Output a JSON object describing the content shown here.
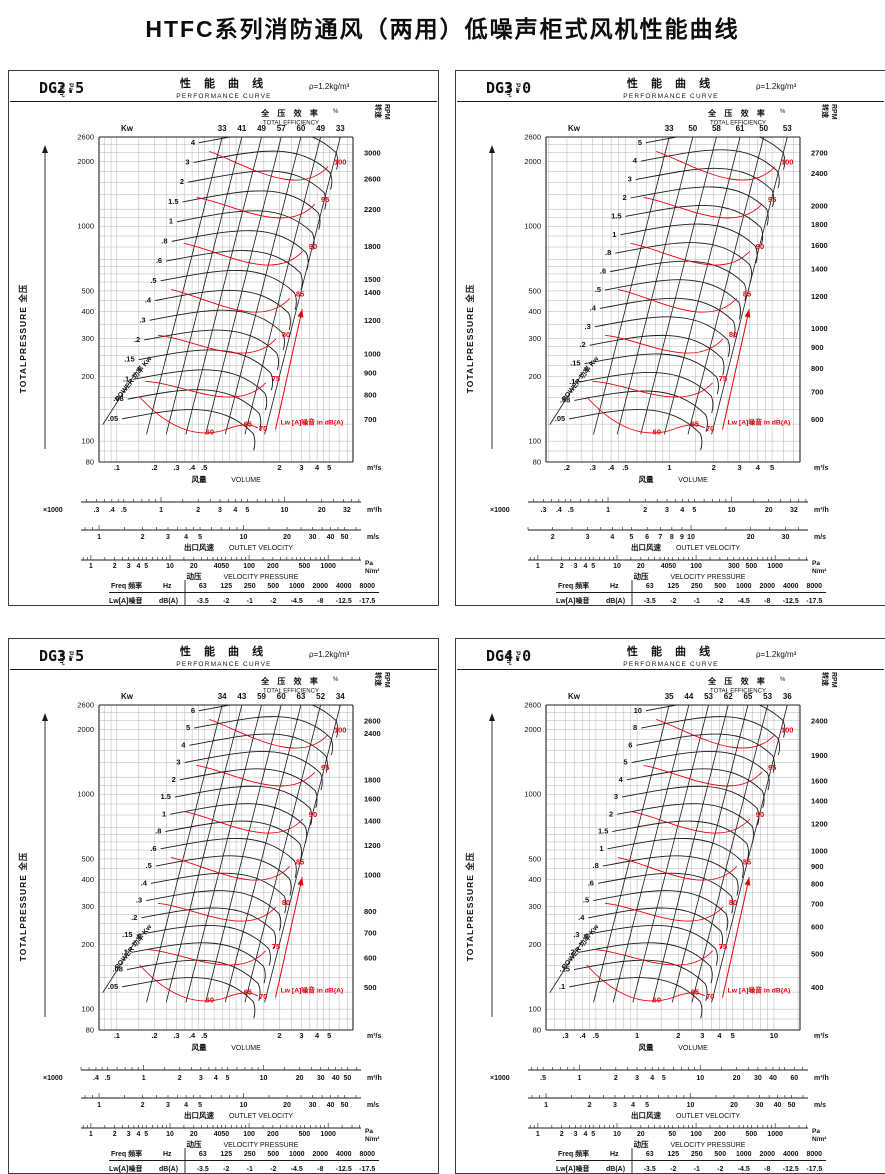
{
  "page": {
    "title": "HTFC系列消防通风（两用）低噪声柜式风机性能曲线"
  },
  "shared": {
    "curve_title_cn": "性 能 曲 线",
    "curve_title_en": "PERFORMANCE CURVE",
    "eff_header_cn": "全 压 效 率",
    "eff_header_en": "TOTAL EFFICIENCY",
    "eff_pct": "%",
    "kw_header": "Kw",
    "pa_unit_top": "Pa",
    "pa_unit_bottom": "N/m²",
    "rpm_label": "转速",
    "rpm_unit": "RPM",
    "left_axis_label": "TOTALPRESSURE  全压",
    "power_label": "POWER  功率  Kw",
    "volume_label_cn": "风量",
    "volume_label_en": "VOLUME",
    "times1000": "×1000",
    "outlet_cn": "出口风速",
    "outlet_en": "OUTLET  VELOCITY",
    "dyn_cn": "动压",
    "dyn_en": "VELOCITY  PRESSURE",
    "unit_m3s": "m³/s",
    "unit_m3h": "m³/h",
    "unit_ms": "m/s",
    "unit_pa": "Pa",
    "unit_nm2": "N/m²",
    "noise_annotation": "Lw [A]噪音   in dB(A)",
    "freq_label": "Freq 频率",
    "freq_unit": "Hz",
    "lw_label": "Lw[A]噪音",
    "lw_unit": "dB(A)",
    "colors": {
      "red": "#e8000d",
      "line": "#1a1a1a",
      "grid": "#b4b4b4"
    }
  },
  "chart_data": [
    {
      "type": "line",
      "model": "DG2.5",
      "title": "性 能 曲 线 PERFORMANCE CURVE",
      "air_density": "ρ=1.2kg/m³",
      "xlabel": "风量 VOLUME",
      "ylabel": "TOTALPRESSURE 全压",
      "pressure_axis_range_pa": [
        80,
        2600
      ],
      "total_efficiency_pct_ticks": [
        "33",
        "41",
        "49",
        "57",
        "60",
        "49",
        "33"
      ],
      "power_kw_curves": [
        "4",
        "3",
        "2",
        "1.5",
        "1",
        ".8",
        ".6",
        ".5",
        ".4",
        ".3",
        ".2",
        ".15",
        ".1",
        ".08",
        ".05"
      ],
      "total_pressure_pa_ticks": [
        "2600",
        "2000",
        "1000",
        "500",
        "400",
        "300",
        "200",
        "100",
        "80"
      ],
      "rpm_ticks": [
        "3000",
        "2600",
        "2200",
        "1800",
        "1500",
        "1400",
        "1200",
        "1000",
        "900",
        "800",
        "700"
      ],
      "volume_m3s_ticks": [
        ".1",
        ".2",
        ".3",
        ".4",
        ".5",
        "2",
        "3",
        "4",
        "5"
      ],
      "volume_m3h_x1000_ticks": [
        ".3",
        ".4",
        ".5",
        "1",
        "2",
        "3",
        "4",
        "5",
        "10",
        "20",
        "32"
      ],
      "outlet_velocity_ms_ticks": [
        "1",
        "2",
        "3",
        "4",
        "5",
        "10",
        "20",
        "30",
        "40",
        "50"
      ],
      "velocity_pressure_pa_ticks": [
        "1",
        "2",
        "3",
        "4",
        "5",
        "10",
        "20",
        "40",
        "50",
        "100",
        "200",
        "500",
        "1000"
      ],
      "iso_efficiency_labels": [
        "100",
        "95",
        "90",
        "85",
        "80",
        "75",
        "70",
        "65",
        "60"
      ],
      "noise_correction_table": {
        "freq_hz": [
          "63",
          "125",
          "250",
          "500",
          "1000",
          "2000",
          "4000",
          "8000"
        ],
        "lw_dBA": [
          "-3.5",
          "-2",
          "-1",
          "-2",
          "-4.5",
          "-8",
          "-12.5",
          "-17.5"
        ]
      }
    },
    {
      "type": "line",
      "model": "DG3.0",
      "title": "性 能 曲 线 PERFORMANCE CURVE",
      "air_density": "ρ=1.2kg/m³",
      "xlabel": "风量 VOLUME",
      "ylabel": "TOTALPRESSURE 全压",
      "pressure_axis_range_pa": [
        80,
        2600
      ],
      "total_efficiency_pct_ticks": [
        "33",
        "50",
        "58",
        "61",
        "50",
        "53"
      ],
      "power_kw_curves": [
        "5",
        "4",
        "3",
        "2",
        "1.5",
        "1",
        ".8",
        ".6",
        ".5",
        ".4",
        ".3",
        ".2",
        ".15",
        ".1",
        ".08",
        ".05"
      ],
      "total_pressure_pa_ticks": [
        "2600",
        "2000",
        "1000",
        "500",
        "400",
        "300",
        "200",
        "100",
        "80"
      ],
      "rpm_ticks": [
        "2700",
        "2400",
        "2000",
        "1800",
        "1600",
        "1400",
        "1200",
        "1000",
        "900",
        "800",
        "700",
        "600"
      ],
      "volume_m3s_ticks": [
        ".2",
        ".3",
        ".4",
        ".5",
        "1",
        "2",
        "3",
        "4",
        "5"
      ],
      "volume_m3h_x1000_ticks": [
        ".3",
        ".4",
        ".5",
        "1",
        "2",
        "3",
        "4",
        "5",
        "10",
        "20",
        "32"
      ],
      "outlet_velocity_ms_ticks": [
        "2",
        "3",
        "4",
        "5",
        "6",
        "7",
        "8",
        "9",
        "10",
        "20",
        "30"
      ],
      "velocity_pressure_pa_ticks": [
        "1",
        "2",
        "3",
        "4",
        "5",
        "10",
        "20",
        "40",
        "50",
        "100",
        "300",
        "500",
        "1000"
      ],
      "iso_efficiency_labels": [
        "100",
        "95",
        "90",
        "85",
        "80",
        "75",
        "70",
        "65",
        "60"
      ],
      "noise_correction_table": {
        "freq_hz": [
          "63",
          "125",
          "250",
          "500",
          "1000",
          "2000",
          "4000",
          "8000"
        ],
        "lw_dBA": [
          "-3.5",
          "-2",
          "-1",
          "-2",
          "-4.5",
          "-8",
          "-12.5",
          "-17.5"
        ]
      }
    },
    {
      "type": "line",
      "model": "DG3.5",
      "title": "性 能 曲 线 PERFORMANCE CURVE",
      "air_density": "ρ=1.2kg/m³",
      "xlabel": "风量 VOLUME",
      "ylabel": "TOTALPRESSURE 全压",
      "pressure_axis_range_pa": [
        80,
        2600
      ],
      "total_efficiency_pct_ticks": [
        "34",
        "43",
        "59",
        "60",
        "63",
        "52",
        "34"
      ],
      "power_kw_curves": [
        "6",
        "5",
        "4",
        "3",
        "2",
        "1.5",
        "1",
        ".8",
        ".6",
        ".5",
        ".4",
        ".3",
        ".2",
        ".15",
        ".1",
        ".08",
        ".05"
      ],
      "total_pressure_pa_ticks": [
        "2600",
        "2000",
        "1000",
        "500",
        "400",
        "300",
        "200",
        "100",
        "80"
      ],
      "rpm_ticks": [
        "2600",
        "2400",
        "1800",
        "1600",
        "1400",
        "1200",
        "1000",
        "800",
        "700",
        "600",
        "500"
      ],
      "volume_m3s_ticks": [
        ".1",
        ".2",
        ".3",
        ".4",
        ".5",
        "2",
        "3",
        "4",
        "5"
      ],
      "volume_m3h_x1000_ticks": [
        ".4",
        ".5",
        "1",
        "2",
        "3",
        "4",
        "5",
        "10",
        "20",
        "30",
        "40",
        "50"
      ],
      "outlet_velocity_ms_ticks": [
        "1",
        "2",
        "3",
        "4",
        "5",
        "10",
        "20",
        "30",
        "40",
        "50"
      ],
      "velocity_pressure_pa_ticks": [
        "1",
        "2",
        "3",
        "4",
        "5",
        "10",
        "20",
        "40",
        "50",
        "100",
        "200",
        "500",
        "1000"
      ],
      "iso_efficiency_labels": [
        "100",
        "95",
        "90",
        "85",
        "80",
        "75",
        "70",
        "65",
        "60"
      ],
      "noise_correction_table": {
        "freq_hz": [
          "63",
          "125",
          "250",
          "500",
          "1000",
          "2000",
          "4000",
          "8000"
        ],
        "lw_dBA": [
          "-3.5",
          "-2",
          "-1",
          "-2",
          "-4.5",
          "-8",
          "-12.5",
          "-17.5"
        ]
      }
    },
    {
      "type": "line",
      "model": "DG4.0",
      "title": "性 能 曲 线 PERFORMANCE CURVE",
      "air_density": "ρ=1.2kg/m³",
      "xlabel": "风量 VOLUME",
      "ylabel": "TOTALPRESSURE 全压",
      "pressure_axis_range_pa": [
        80,
        2600
      ],
      "total_efficiency_pct_ticks": [
        "35",
        "44",
        "53",
        "62",
        "65",
        "53",
        "36"
      ],
      "power_kw_curves": [
        "10",
        "8",
        "6",
        "5",
        "4",
        "3",
        "2",
        "1.5",
        "1",
        ".8",
        ".6",
        ".5",
        ".4",
        ".3",
        ".2",
        ".15",
        ".1"
      ],
      "total_pressure_pa_ticks": [
        "2600",
        "2000",
        "1000",
        "500",
        "400",
        "300",
        "200",
        "100",
        "80"
      ],
      "rpm_ticks": [
        "2400",
        "1900",
        "1600",
        "1400",
        "1200",
        "1000",
        "900",
        "800",
        "700",
        "600",
        "500",
        "400"
      ],
      "volume_m3s_ticks": [
        ".3",
        ".4",
        ".5",
        "1",
        "2",
        "3",
        "4",
        "5",
        "10"
      ],
      "volume_m3h_x1000_ticks": [
        ".5",
        "1",
        "2",
        "3",
        "4",
        "5",
        "10",
        "20",
        "30",
        "40",
        "60"
      ],
      "outlet_velocity_ms_ticks": [
        "1",
        "2",
        "3",
        "4",
        "5",
        "10",
        "20",
        "30",
        "40",
        "50"
      ],
      "velocity_pressure_pa_ticks": [
        "1",
        "2",
        "3",
        "4",
        "5",
        "10",
        "20",
        "50",
        "100",
        "200",
        "500",
        "1000"
      ],
      "iso_efficiency_labels": [
        "100",
        "95",
        "90",
        "85",
        "80",
        "75",
        "70",
        "65",
        "60"
      ],
      "noise_correction_table": {
        "freq_hz": [
          "63",
          "125",
          "250",
          "500",
          "1000",
          "2000",
          "4000",
          "8000"
        ],
        "lw_dBA": [
          "-3.5",
          "-2",
          "-1",
          "-2",
          "-4.5",
          "-8",
          "-12.5",
          "-17.5"
        ]
      }
    }
  ]
}
